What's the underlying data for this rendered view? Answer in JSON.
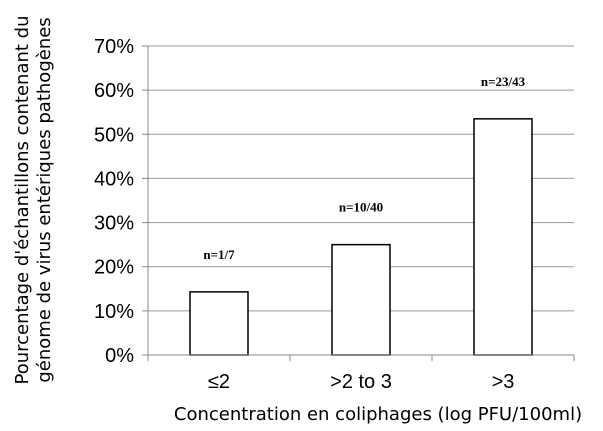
{
  "chart_data": {
    "type": "bar",
    "categories": [
      "≤2",
      ">2 to 3",
      ">3"
    ],
    "values": [
      14.3,
      25,
      53.5
    ],
    "data_labels": [
      "n=1/7",
      "n=10/40",
      "n=23/43"
    ],
    "y_ticks": [
      "0%",
      "10%",
      "20%",
      "30%",
      "40%",
      "50%",
      "60%",
      "70%"
    ],
    "ylim": [
      0,
      70
    ],
    "xlabel": "Concentration en coliphages (log PFU/100ml)",
    "ylabel_lines": [
      "Pourcentage d'échantillons contenant du",
      "génome de virus entériques pathogènes"
    ],
    "grid": true,
    "legend": "none",
    "colors": {
      "bar_fill": "#ffffff",
      "bar_stroke": "#000000",
      "grid": "#9a9a9a",
      "axis": "#8a8a8a"
    }
  }
}
